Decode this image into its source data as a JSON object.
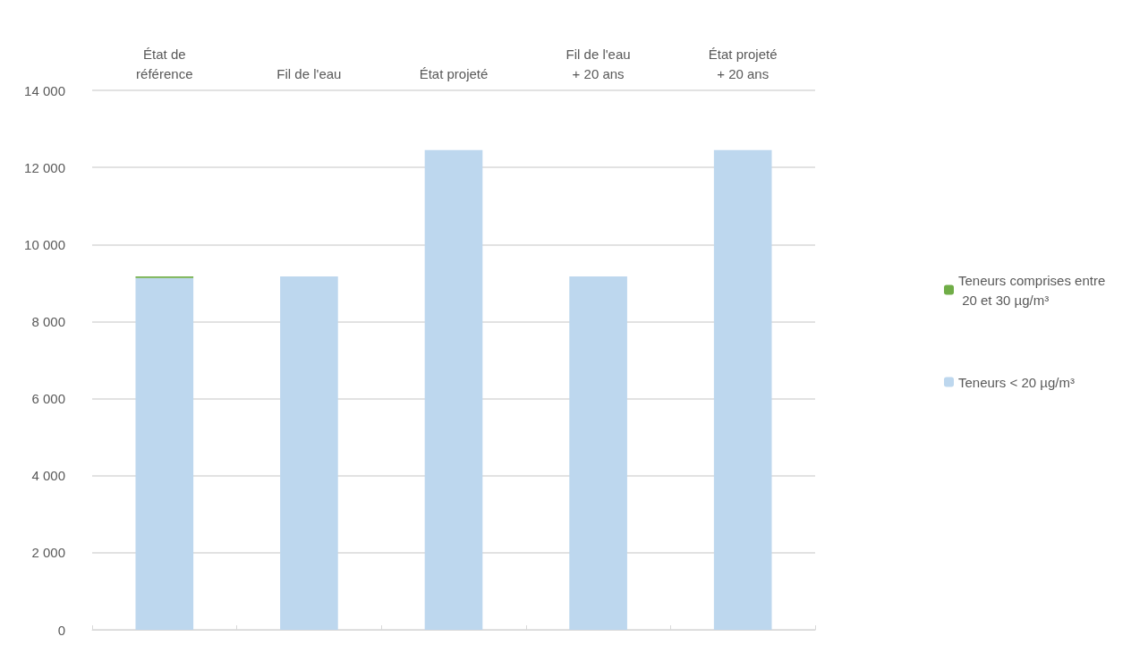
{
  "chart_data": {
    "type": "bar",
    "stacked": true,
    "categories": [
      "État de\nréférence",
      "Fil de l'eau",
      "État projeté",
      "Fil de l'eau\n+ 20 ans",
      "État projeté\n+ 20 ans"
    ],
    "series": [
      {
        "name": "Teneurs < 20 µg/m³",
        "color": "#bdd7ee",
        "values": [
          9130,
          9170,
          12450,
          9170,
          12450
        ]
      },
      {
        "name": "Teneurs comprises entre 20 et 30 µg/m³",
        "color": "#70ad47",
        "values": [
          40,
          0,
          0,
          0,
          0
        ]
      }
    ],
    "ylim": [
      0,
      14000
    ],
    "yticks": [
      0,
      {
        "value": 2000,
        "label": "2 000"
      },
      {
        "value": 4000,
        "label": "4 000"
      },
      {
        "value": 6000,
        "label": "6 000"
      },
      {
        "value": 8000,
        "label": "8 000"
      },
      {
        "value": 10000,
        "label": "10 000"
      },
      {
        "value": 12000,
        "label": "12 000"
      },
      {
        "value": 14000,
        "label": "14 000"
      }
    ],
    "grid": "y",
    "legend": "right"
  }
}
